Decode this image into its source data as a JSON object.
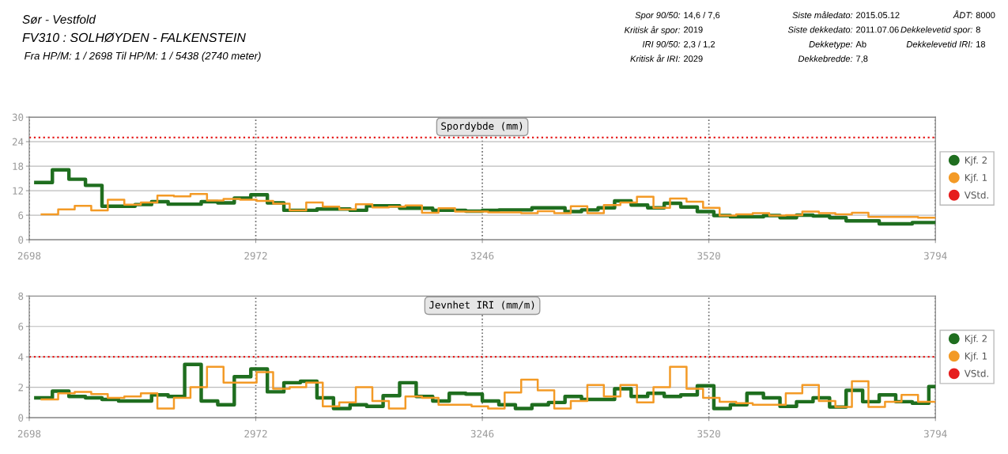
{
  "chart_data": [
    {
      "type": "step",
      "title": "Spordybde (mm)",
      "xlim": [
        2698,
        3794
      ],
      "xticks": [
        2698,
        2972,
        3246,
        3520,
        3794
      ],
      "ylim": [
        0,
        30
      ],
      "yticks": [
        0,
        6,
        12,
        18,
        24,
        30
      ],
      "grid": true,
      "legend": "right",
      "ref_lines": [
        {
          "axis": "y",
          "value": 25,
          "label": "VStd.",
          "color": "#e61e1e",
          "line_style": "dotted"
        }
      ],
      "annotations": [
        "Sør - Vestfold",
        "FV310 : SOLHØYDEN - FALKENSTEIN",
        "Fra HP/M: 1 / 2698 Til HP/M: 1 / 5438 (2740 meter)",
        "Spor 90/50:",
        "14,6 / 7,6",
        "Kritisk år spor:",
        "2019",
        "IRI 90/50:",
        "2,3 / 1,2",
        "Kritisk år IRI:",
        "2029",
        "Siste måledato:",
        "2015.05.12",
        "Siste dekkedato:",
        "2011.07.06",
        "Dekketype:",
        "Ab",
        "Dekkebredde:",
        "7,8",
        "ÅDT:",
        "8000",
        "Dekkelevetid spor:",
        "8",
        "Dekkelevetid IRI:",
        "18"
      ],
      "series": [
        {
          "name": "Kjf. 2",
          "color": "#1f6e1f",
          "x": [
            2706,
            2726,
            2746,
            2766,
            2786,
            2806,
            2826,
            2846,
            2866,
            2886,
            2906,
            2926,
            2946,
            2966,
            2986,
            3006,
            3026,
            3046,
            3066,
            3086,
            3106,
            3126,
            3146,
            3166,
            3186,
            3206,
            3226,
            3246,
            3266,
            3286,
            3306,
            3326,
            3346,
            3366,
            3386,
            3406,
            3426,
            3446,
            3466,
            3486,
            3506,
            3526,
            3546,
            3566,
            3586,
            3606,
            3626,
            3646,
            3666,
            3686,
            3706,
            3726,
            3746,
            3766,
            3786,
            3794
          ],
          "values": [
            14,
            17.1,
            14.8,
            13.3,
            8.2,
            8.2,
            8.6,
            9.3,
            8.7,
            8.7,
            9.3,
            9,
            10.2,
            11,
            9,
            7.2,
            7.2,
            7.5,
            7.5,
            7.2,
            8.3,
            8.3,
            7.7,
            7.7,
            7.2,
            7.2,
            7,
            7.2,
            7.3,
            7.3,
            7.8,
            7.8,
            6.9,
            7.3,
            7.8,
            9.5,
            8.5,
            7.8,
            8.9,
            8,
            6.9,
            5.9,
            5.6,
            5.6,
            5.9,
            5.4,
            6,
            5.8,
            5.4,
            4.6,
            4.6,
            3.9,
            3.9,
            4.2,
            4.2,
            4.2
          ]
        },
        {
          "name": "Kjf. 1",
          "color": "#f39a26",
          "x": [
            2713,
            2733,
            2753,
            2773,
            2793,
            2813,
            2833,
            2853,
            2873,
            2893,
            2913,
            2933,
            2953,
            2973,
            2993,
            3013,
            3033,
            3053,
            3073,
            3093,
            3113,
            3133,
            3153,
            3173,
            3193,
            3213,
            3233,
            3253,
            3273,
            3293,
            3313,
            3333,
            3353,
            3373,
            3393,
            3413,
            3433,
            3453,
            3473,
            3493,
            3513,
            3533,
            3553,
            3573,
            3593,
            3613,
            3633,
            3653,
            3673,
            3693,
            3713,
            3733,
            3753,
            3773,
            3794
          ],
          "values": [
            6.2,
            7.4,
            8.3,
            7.2,
            9.8,
            8.6,
            9.1,
            10.8,
            10.6,
            11.2,
            9.6,
            10,
            9.8,
            9.5,
            8.8,
            7.2,
            9.1,
            8.1,
            7.4,
            8.7,
            7.9,
            8.1,
            8.4,
            6.6,
            7.7,
            6.9,
            6.9,
            6.7,
            6.7,
            6.5,
            7,
            6.5,
            8.2,
            6.5,
            8.5,
            9.1,
            10.5,
            7.8,
            10.1,
            9.3,
            7.8,
            5.9,
            6.2,
            6.5,
            5.9,
            6,
            6.9,
            6.5,
            6.2,
            6.6,
            5.6,
            5.6,
            5.6,
            5.4,
            5.4
          ]
        }
      ]
    },
    {
      "type": "step",
      "title": "Jevnhet IRI (mm/m)",
      "xlim": [
        2698,
        3794
      ],
      "xticks": [
        2698,
        2972,
        3246,
        3520,
        3794
      ],
      "ylim": [
        0,
        8
      ],
      "yticks": [
        0,
        2,
        4,
        6,
        8
      ],
      "grid": true,
      "legend": "right",
      "ref_lines": [
        {
          "axis": "y",
          "value": 4,
          "label": "VStd.",
          "color": "#e61e1e",
          "line_style": "dotted"
        }
      ],
      "series": [
        {
          "name": "Kjf. 2",
          "color": "#1f6e1f",
          "x": [
            2706,
            2726,
            2746,
            2766,
            2786,
            2806,
            2826,
            2846,
            2866,
            2886,
            2906,
            2926,
            2946,
            2966,
            2986,
            3006,
            3026,
            3046,
            3066,
            3086,
            3106,
            3126,
            3146,
            3166,
            3186,
            3206,
            3226,
            3246,
            3266,
            3286,
            3306,
            3326,
            3346,
            3366,
            3386,
            3406,
            3426,
            3446,
            3466,
            3486,
            3506,
            3526,
            3546,
            3566,
            3586,
            3606,
            3626,
            3646,
            3666,
            3686,
            3706,
            3726,
            3746,
            3766,
            3786,
            3794
          ],
          "values": [
            1.3,
            1.75,
            1.4,
            1.3,
            1.2,
            1.1,
            1.1,
            1.5,
            1.4,
            3.5,
            1.1,
            0.85,
            2.7,
            3.2,
            1.7,
            2.3,
            2.4,
            1.3,
            0.6,
            0.85,
            0.75,
            1.45,
            2.3,
            1.4,
            1.1,
            1.6,
            1.55,
            1.1,
            0.85,
            0.6,
            0.85,
            1,
            1.4,
            1.2,
            1.2,
            1.9,
            1.4,
            1.6,
            1.4,
            1.5,
            2.1,
            0.6,
            0.85,
            1.6,
            1.3,
            0.75,
            1.05,
            1.3,
            0.7,
            1.8,
            1.05,
            1.5,
            1.05,
            0.95,
            2.05,
            2.05
          ]
        },
        {
          "name": "Kjf. 1",
          "color": "#f39a26",
          "x": [
            2713,
            2733,
            2753,
            2773,
            2793,
            2813,
            2833,
            2853,
            2873,
            2893,
            2913,
            2933,
            2953,
            2973,
            2993,
            3013,
            3033,
            3053,
            3073,
            3093,
            3113,
            3133,
            3153,
            3173,
            3193,
            3213,
            3233,
            3253,
            3273,
            3293,
            3313,
            3333,
            3353,
            3373,
            3393,
            3413,
            3433,
            3453,
            3473,
            3493,
            3513,
            3533,
            3553,
            3573,
            3593,
            3613,
            3633,
            3653,
            3673,
            3693,
            3713,
            3733,
            3753,
            3773,
            3794
          ],
          "values": [
            1.2,
            1.6,
            1.7,
            1.55,
            1.3,
            1.4,
            1.6,
            0.6,
            1.3,
            2,
            3.35,
            2.3,
            2.3,
            3,
            1.9,
            2,
            2.3,
            0.75,
            1,
            2,
            1.1,
            0.6,
            1.4,
            1.3,
            0.85,
            0.85,
            0.75,
            0.6,
            1.65,
            2.5,
            1.8,
            0.6,
            1.1,
            2.15,
            1.4,
            2.15,
            1,
            2,
            3.35,
            1.9,
            1.3,
            1.05,
            0.95,
            0.85,
            0.85,
            1.6,
            2.15,
            1.1,
            0.7,
            2.4,
            0.7,
            1.05,
            1.5,
            1.05,
            1.05
          ]
        }
      ]
    }
  ]
}
